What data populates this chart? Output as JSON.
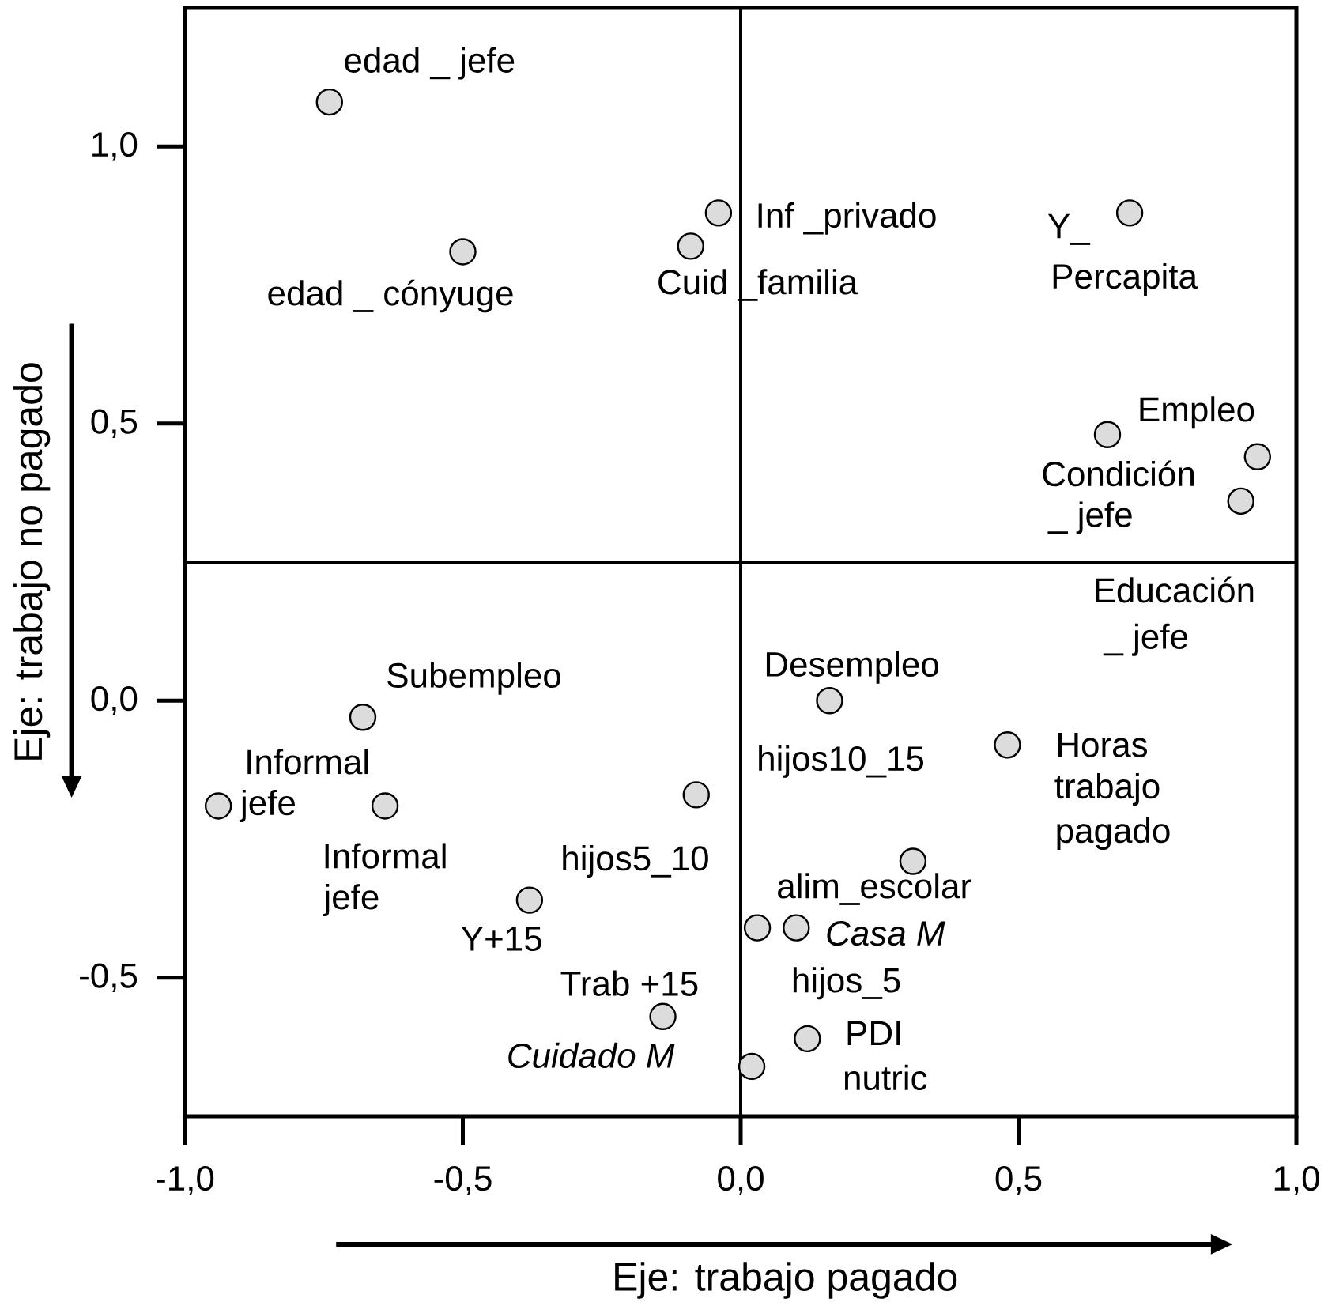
{
  "chart_data": {
    "type": "scatter",
    "xlabel": "Eje: trabajo pagado",
    "ylabel": "Eje: trabajo no pagado",
    "x": [
      -0.74,
      -0.5,
      -0.09,
      -0.04,
      0.7,
      0.66,
      0.93,
      0.9,
      -0.68,
      -0.94,
      -0.64,
      -0.08,
      -0.38,
      -0.14,
      0.16,
      0.48,
      0.31,
      0.03,
      0.1,
      0.12,
      0.02
    ],
    "values": [
      1.08,
      0.81,
      0.82,
      0.88,
      0.88,
      0.48,
      0.44,
      0.36,
      -0.03,
      -0.19,
      -0.19,
      -0.17,
      -0.36,
      -0.57,
      0.0,
      -0.08,
      -0.29,
      -0.41,
      -0.41,
      -0.61,
      -0.66
    ],
    "color": "#dcdcdc",
    "xlim": [
      -1,
      1
    ],
    "ylim": [
      -0.75,
      1.25
    ],
    "xticks": [
      {
        "value": -1,
        "label": "-1,0"
      },
      {
        "value": -0.5,
        "label": "-0,5"
      },
      {
        "value": 0,
        "label": "0,0"
      },
      {
        "value": 0.5,
        "label": "0,5"
      },
      {
        "value": 1,
        "label": "1,0"
      }
    ],
    "yticks": [
      {
        "value": -0.5,
        "label": "-0,5"
      },
      {
        "value": 0,
        "label": "0,0"
      },
      {
        "value": 0.5,
        "label": "0,5"
      },
      {
        "value": 1,
        "label": "1,0"
      }
    ],
    "ref_lines": [
      {
        "axis": "x",
        "value": 0,
        "color": "#000000"
      },
      {
        "axis": "y",
        "value": 0.25,
        "color": "#000000"
      }
    ],
    "annotations": [
      "edad _ jefe",
      "edad _ cónyuge",
      "Inf _privado",
      "Cuid _familia",
      "Y_",
      "Percapita",
      "Empleo",
      "Condición",
      "_ jefe",
      "Educación",
      "_ jefe",
      "Subempleo",
      "Informal",
      "jefe",
      "Informal",
      "jefe",
      "hijos5_10",
      "Y+15",
      "Trab +15",
      "*Cuidado M*",
      "Desempleo",
      "hijos10_15",
      "Horas",
      "trabajo",
      "pagado",
      "alim_escolar",
      "*Casa M*",
      "hijos_5",
      "PDI",
      "nutric"
    ]
  }
}
